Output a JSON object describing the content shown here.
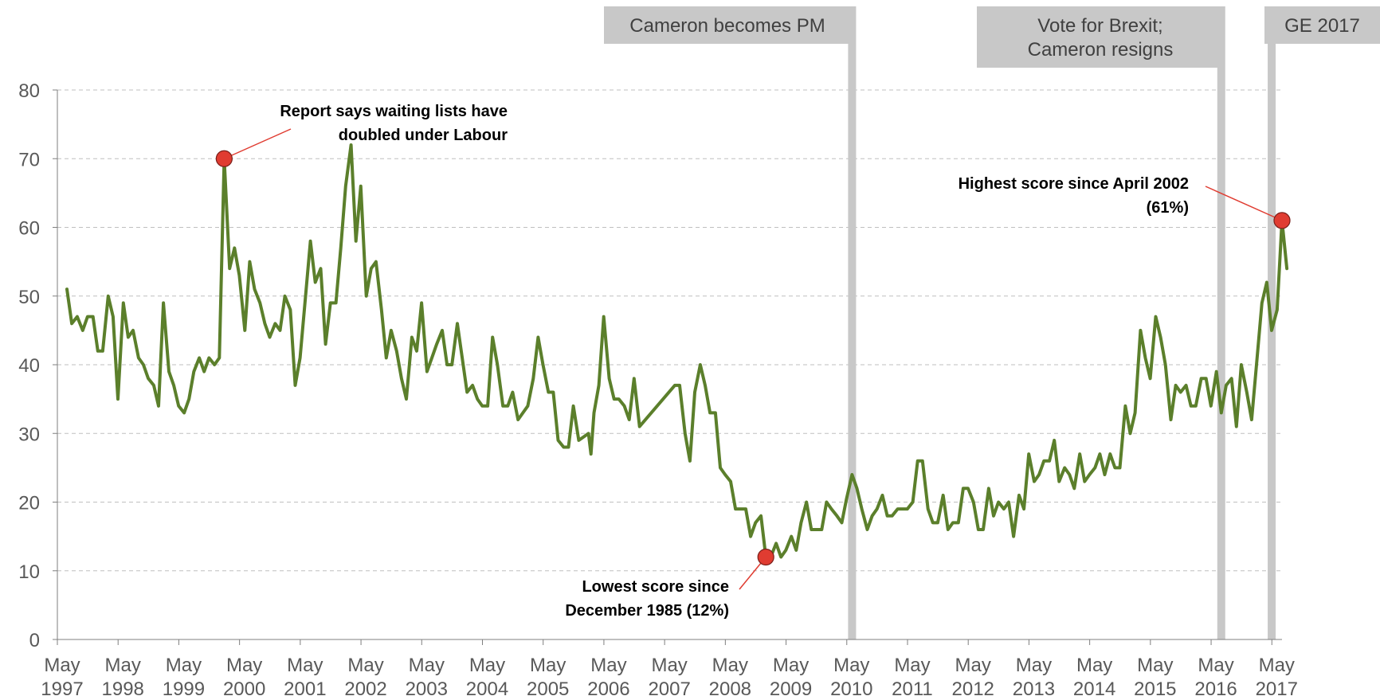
{
  "chart_data": {
    "type": "line",
    "title": "",
    "xlabel": "",
    "ylabel": "",
    "ylim": [
      0,
      80
    ],
    "y_ticks": [
      "0",
      "10",
      "20",
      "30",
      "40",
      "50",
      "60",
      "70",
      "80"
    ],
    "grid": true,
    "grid_style": "dashed",
    "x_range": [
      1997.333,
      2017.5
    ],
    "x_tick_labels": [
      {
        "x": 1997.333,
        "month": "May",
        "year": "1997"
      },
      {
        "x": 1998.333,
        "month": "May",
        "year": "1998"
      },
      {
        "x": 1999.333,
        "month": "May",
        "year": "1999"
      },
      {
        "x": 2000.333,
        "month": "May",
        "year": "2000"
      },
      {
        "x": 2001.333,
        "month": "May",
        "year": "2001"
      },
      {
        "x": 2002.333,
        "month": "May",
        "year": "2002"
      },
      {
        "x": 2003.333,
        "month": "May",
        "year": "2003"
      },
      {
        "x": 2004.333,
        "month": "May",
        "year": "2004"
      },
      {
        "x": 2005.333,
        "month": "May",
        "year": "2005"
      },
      {
        "x": 2006.333,
        "month": "May",
        "year": "2006"
      },
      {
        "x": 2007.333,
        "month": "May",
        "year": "2007"
      },
      {
        "x": 2008.333,
        "month": "May",
        "year": "2008"
      },
      {
        "x": 2009.333,
        "month": "May",
        "year": "2009"
      },
      {
        "x": 2010.333,
        "month": "May",
        "year": "2010"
      },
      {
        "x": 2011.333,
        "month": "May",
        "year": "2011"
      },
      {
        "x": 2012.333,
        "month": "May",
        "year": "2012"
      },
      {
        "x": 2013.333,
        "month": "May",
        "year": "2013"
      },
      {
        "x": 2014.333,
        "month": "May",
        "year": "2014"
      },
      {
        "x": 2015.333,
        "month": "May",
        "year": "2015"
      },
      {
        "x": 2016.333,
        "month": "May",
        "year": "2016"
      },
      {
        "x": 2017.333,
        "month": "May",
        "year": "2017"
      }
    ],
    "series": [
      {
        "color": "#5b7f2b",
        "points": [
          [
            1997.49,
            51
          ],
          [
            1997.57,
            46
          ],
          [
            1997.66,
            47
          ],
          [
            1997.75,
            45
          ],
          [
            1997.83,
            47
          ],
          [
            1997.92,
            47
          ],
          [
            1998.0,
            42
          ],
          [
            1998.08,
            42
          ],
          [
            1998.17,
            50
          ],
          [
            1998.25,
            47
          ],
          [
            1998.33,
            35
          ],
          [
            1998.42,
            49
          ],
          [
            1998.5,
            44
          ],
          [
            1998.58,
            45
          ],
          [
            1998.67,
            41
          ],
          [
            1998.75,
            40
          ],
          [
            1998.83,
            38
          ],
          [
            1998.92,
            37
          ],
          [
            1999.0,
            34
          ],
          [
            1999.08,
            49
          ],
          [
            1999.17,
            39
          ],
          [
            1999.25,
            37
          ],
          [
            1999.33,
            34
          ],
          [
            1999.42,
            33
          ],
          [
            1999.5,
            35
          ],
          [
            1999.58,
            39
          ],
          [
            1999.67,
            41
          ],
          [
            1999.75,
            39
          ],
          [
            1999.83,
            41
          ],
          [
            1999.92,
            40
          ],
          [
            2000.0,
            41
          ],
          [
            2000.08,
            70
          ],
          [
            2000.17,
            54
          ],
          [
            2000.25,
            57
          ],
          [
            2000.33,
            53
          ],
          [
            2000.42,
            45
          ],
          [
            2000.5,
            55
          ],
          [
            2000.58,
            51
          ],
          [
            2000.67,
            49
          ],
          [
            2000.75,
            46
          ],
          [
            2000.83,
            44
          ],
          [
            2000.92,
            46
          ],
          [
            2001.0,
            45
          ],
          [
            2001.08,
            50
          ],
          [
            2001.17,
            48
          ],
          [
            2001.25,
            37
          ],
          [
            2001.33,
            41
          ],
          [
            2001.42,
            50
          ],
          [
            2001.5,
            58
          ],
          [
            2001.58,
            52
          ],
          [
            2001.67,
            54
          ],
          [
            2001.75,
            43
          ],
          [
            2001.83,
            49
          ],
          [
            2001.92,
            49
          ],
          [
            2002.0,
            57
          ],
          [
            2002.08,
            66
          ],
          [
            2002.17,
            72
          ],
          [
            2002.25,
            58
          ],
          [
            2002.33,
            66
          ],
          [
            2002.42,
            50
          ],
          [
            2002.5,
            54
          ],
          [
            2002.58,
            55
          ],
          [
            2002.67,
            48
          ],
          [
            2002.75,
            41
          ],
          [
            2002.83,
            45
          ],
          [
            2002.92,
            42
          ],
          [
            2003.0,
            38
          ],
          [
            2003.08,
            35
          ],
          [
            2003.17,
            44
          ],
          [
            2003.25,
            42
          ],
          [
            2003.33,
            49
          ],
          [
            2003.42,
            39
          ],
          [
            2003.5,
            41
          ],
          [
            2003.58,
            43
          ],
          [
            2003.67,
            45
          ],
          [
            2003.75,
            40
          ],
          [
            2003.83,
            40
          ],
          [
            2003.92,
            46
          ],
          [
            2004.0,
            41
          ],
          [
            2004.08,
            36
          ],
          [
            2004.17,
            37
          ],
          [
            2004.25,
            35
          ],
          [
            2004.33,
            34
          ],
          [
            2004.42,
            34
          ],
          [
            2004.5,
            44
          ],
          [
            2004.58,
            40
          ],
          [
            2004.67,
            34
          ],
          [
            2004.75,
            34
          ],
          [
            2004.83,
            36
          ],
          [
            2004.92,
            32
          ],
          [
            2005.0,
            33
          ],
          [
            2005.08,
            34
          ],
          [
            2005.17,
            38
          ],
          [
            2005.25,
            44
          ],
          [
            2005.33,
            40
          ],
          [
            2005.42,
            36
          ],
          [
            2005.5,
            36
          ],
          [
            2005.58,
            29
          ],
          [
            2005.67,
            28
          ],
          [
            2005.75,
            28
          ],
          [
            2005.83,
            34
          ],
          [
            2005.92,
            29
          ],
          [
            2006.0,
            29.5
          ],
          [
            2006.08,
            30
          ],
          [
            2006.12,
            27
          ],
          [
            2006.17,
            33
          ],
          [
            2006.25,
            37
          ],
          [
            2006.33,
            47
          ],
          [
            2006.42,
            38
          ],
          [
            2006.5,
            35
          ],
          [
            2006.58,
            35
          ],
          [
            2006.67,
            34
          ],
          [
            2006.75,
            32
          ],
          [
            2006.83,
            38
          ],
          [
            2006.92,
            31
          ],
          [
            2007.5,
            37
          ],
          [
            2007.58,
            37
          ],
          [
            2007.67,
            30
          ],
          [
            2007.75,
            26
          ],
          [
            2007.83,
            36
          ],
          [
            2007.92,
            40
          ],
          [
            2008.0,
            37
          ],
          [
            2008.08,
            33
          ],
          [
            2008.17,
            33
          ],
          [
            2008.25,
            25
          ],
          [
            2008.33,
            24
          ],
          [
            2008.42,
            23
          ],
          [
            2008.5,
            19
          ],
          [
            2008.58,
            19
          ],
          [
            2008.67,
            19
          ],
          [
            2008.75,
            15
          ],
          [
            2008.83,
            17
          ],
          [
            2008.92,
            18
          ],
          [
            2009.0,
            12
          ],
          [
            2009.08,
            12
          ],
          [
            2009.17,
            14
          ],
          [
            2009.25,
            12
          ],
          [
            2009.33,
            13
          ],
          [
            2009.42,
            15
          ],
          [
            2009.5,
            13
          ],
          [
            2009.58,
            17
          ],
          [
            2009.67,
            20
          ],
          [
            2009.75,
            16
          ],
          [
            2009.83,
            16
          ],
          [
            2009.92,
            16
          ],
          [
            2010.0,
            20
          ],
          [
            2010.08,
            19
          ],
          [
            2010.17,
            18
          ],
          [
            2010.25,
            17
          ],
          [
            2010.33,
            20.5
          ],
          [
            2010.42,
            24
          ],
          [
            2010.5,
            22
          ],
          [
            2010.58,
            19
          ],
          [
            2010.67,
            16
          ],
          [
            2010.75,
            18
          ],
          [
            2010.83,
            19
          ],
          [
            2010.92,
            21
          ],
          [
            2011.0,
            18
          ],
          [
            2011.08,
            18
          ],
          [
            2011.17,
            19
          ],
          [
            2011.25,
            19
          ],
          [
            2011.33,
            19
          ],
          [
            2011.42,
            20
          ],
          [
            2011.5,
            26
          ],
          [
            2011.58,
            26
          ],
          [
            2011.67,
            19
          ],
          [
            2011.75,
            17
          ],
          [
            2011.83,
            17
          ],
          [
            2011.92,
            21
          ],
          [
            2012.0,
            16
          ],
          [
            2012.08,
            17
          ],
          [
            2012.17,
            17
          ],
          [
            2012.25,
            22
          ],
          [
            2012.33,
            22
          ],
          [
            2012.42,
            20
          ],
          [
            2012.5,
            16
          ],
          [
            2012.58,
            16
          ],
          [
            2012.67,
            22
          ],
          [
            2012.75,
            18
          ],
          [
            2012.83,
            20
          ],
          [
            2012.92,
            19
          ],
          [
            2013.0,
            20
          ],
          [
            2013.08,
            15
          ],
          [
            2013.17,
            21
          ],
          [
            2013.25,
            19
          ],
          [
            2013.33,
            27
          ],
          [
            2013.42,
            23
          ],
          [
            2013.5,
            24
          ],
          [
            2013.58,
            26
          ],
          [
            2013.67,
            26
          ],
          [
            2013.75,
            29
          ],
          [
            2013.83,
            23
          ],
          [
            2013.92,
            25
          ],
          [
            2014.0,
            24
          ],
          [
            2014.08,
            22
          ],
          [
            2014.17,
            27
          ],
          [
            2014.25,
            23
          ],
          [
            2014.33,
            24
          ],
          [
            2014.42,
            25
          ],
          [
            2014.5,
            27
          ],
          [
            2014.58,
            24
          ],
          [
            2014.67,
            27
          ],
          [
            2014.75,
            25
          ],
          [
            2014.83,
            25
          ],
          [
            2014.92,
            34
          ],
          [
            2015.0,
            30
          ],
          [
            2015.08,
            33
          ],
          [
            2015.17,
            45
          ],
          [
            2015.25,
            41
          ],
          [
            2015.33,
            38
          ],
          [
            2015.42,
            47
          ],
          [
            2015.5,
            44
          ],
          [
            2015.58,
            40
          ],
          [
            2015.67,
            32
          ],
          [
            2015.75,
            37
          ],
          [
            2015.83,
            36
          ],
          [
            2015.92,
            37
          ],
          [
            2016.0,
            34
          ],
          [
            2016.08,
            34
          ],
          [
            2016.17,
            38
          ],
          [
            2016.25,
            38
          ],
          [
            2016.33,
            34
          ],
          [
            2016.42,
            39
          ],
          [
            2016.5,
            33
          ],
          [
            2016.58,
            37
          ],
          [
            2016.67,
            38
          ],
          [
            2016.75,
            31
          ],
          [
            2016.83,
            40
          ],
          [
            2016.92,
            36
          ],
          [
            2017.0,
            32
          ],
          [
            2017.08,
            40
          ],
          [
            2017.17,
            49
          ],
          [
            2017.25,
            52
          ],
          [
            2017.33,
            45
          ],
          [
            2017.42,
            48
          ],
          [
            2017.5,
            61
          ],
          [
            2017.58,
            54
          ]
        ]
      }
    ],
    "events": [
      {
        "label_lines": [
          "Cameron becomes PM"
        ],
        "x": 2010.42
      },
      {
        "label_lines": [
          "Vote for Brexit;",
          "Cameron resigns"
        ],
        "x": 2016.5
      },
      {
        "label_lines": [
          "GE 2017"
        ],
        "x": 2017.33
      }
    ],
    "annotations": [
      {
        "lines": [
          "Report says waiting lists have",
          "doubled under Labour"
        ],
        "point": [
          2000.08,
          70
        ]
      },
      {
        "lines": [
          "Lowest score  since",
          "December 1985 (12%)"
        ],
        "point": [
          2009.0,
          12
        ]
      },
      {
        "lines": [
          "Highest score since April 2002",
          "(61%)"
        ],
        "point": [
          2017.5,
          61
        ]
      }
    ],
    "colors": {
      "line": "#5b7f2b",
      "marker": "#e03c31",
      "event_band": "#c8c8c8",
      "gridline": "#bfbfbf",
      "axis_text": "#595959",
      "callout_line": "#e03c31"
    }
  }
}
